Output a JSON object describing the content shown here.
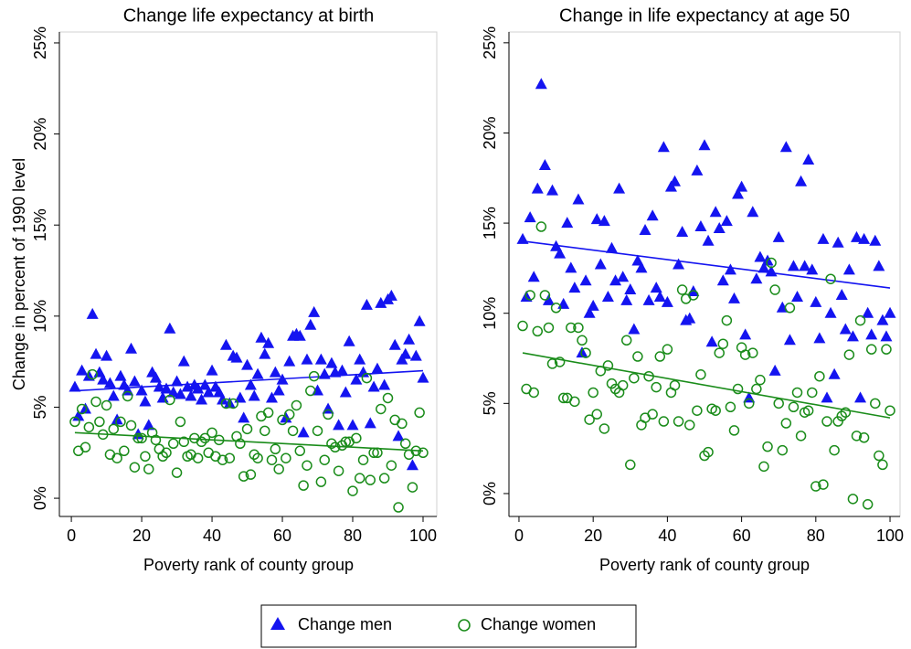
{
  "chart_data": [
    {
      "type": "scatter",
      "title": "Change life expectancy at birth",
      "x_label": "Poverty rank of county group",
      "y_label": "Change in percent of 1990 level",
      "xlim": [
        -3.4,
        103.9
      ],
      "xticks": [
        0,
        20,
        40,
        60,
        80,
        100
      ],
      "ylim": [
        -1,
        25.6
      ],
      "yticks": [
        {
          "value": 0,
          "label": "0%"
        },
        {
          "value": 5,
          "label": "5%"
        },
        {
          "value": 10,
          "label": "10%"
        },
        {
          "value": 15,
          "label": "15%"
        },
        {
          "value": 20,
          "label": "20%"
        },
        {
          "value": 25,
          "label": "25%"
        }
      ],
      "x": [
        1,
        2,
        3,
        4,
        5,
        6,
        7,
        8,
        9,
        10,
        11,
        12,
        13,
        14,
        15,
        16,
        17,
        18,
        19,
        20,
        21,
        22,
        23,
        24,
        25,
        26,
        27,
        28,
        29,
        30,
        31,
        32,
        33,
        34,
        35,
        36,
        37,
        38,
        39,
        40,
        41,
        42,
        43,
        44,
        45,
        46,
        47,
        48,
        49,
        50,
        51,
        52,
        53,
        54,
        55,
        56,
        57,
        58,
        59,
        60,
        61,
        62,
        63,
        64,
        65,
        66,
        67,
        68,
        69,
        70,
        71,
        72,
        73,
        74,
        75,
        76,
        77,
        78,
        79,
        80,
        81,
        82,
        83,
        84,
        85,
        86,
        87,
        88,
        89,
        90,
        91,
        92,
        93,
        94,
        95,
        96,
        97,
        98,
        99,
        100
      ],
      "series": [
        {
          "name": "Change men",
          "marker": "triangle",
          "color": "#1414f0",
          "values": [
            6.1,
            4.5,
            7.0,
            4.9,
            6.7,
            10.1,
            7.9,
            6.9,
            6.5,
            7.8,
            6.3,
            5.6,
            4.3,
            6.7,
            6.2,
            5.9,
            8.2,
            6.4,
            3.5,
            5.9,
            5.3,
            4.0,
            6.9,
            6.6,
            6.1,
            5.5,
            6.0,
            9.3,
            5.8,
            6.4,
            5.7,
            7.5,
            6.1,
            5.6,
            6.2,
            6.0,
            5.4,
            6.2,
            5.8,
            7.0,
            6.1,
            5.8,
            5.4,
            8.4,
            5.2,
            7.8,
            7.7,
            5.5,
            4.4,
            7.3,
            6.2,
            5.6,
            6.8,
            8.8,
            7.9,
            8.5,
            5.5,
            6.9,
            5.9,
            6.5,
            4.4,
            7.5,
            8.9,
            9.0,
            8.9,
            3.6,
            7.6,
            9.5,
            10.2,
            5.9,
            7.6,
            6.8,
            4.9,
            7.4,
            6.9,
            4.0,
            7.0,
            5.8,
            8.6,
            4.0,
            6.5,
            7.6,
            6.9,
            10.6,
            4.1,
            6.1,
            7.1,
            10.7,
            6.2,
            10.9,
            11.1,
            8.4,
            3.4,
            7.6,
            7.9,
            8.7,
            1.8,
            7.8,
            9.7,
            6.6
          ],
          "fit": {
            "x": [
              1,
              100
            ],
            "values": [
              5.9,
              7.0
            ]
          }
        },
        {
          "name": "Change women",
          "marker": "circle",
          "color": "#1a8c1a",
          "values": [
            4.2,
            2.6,
            4.9,
            2.8,
            3.9,
            6.8,
            5.3,
            4.2,
            3.5,
            5.1,
            2.4,
            3.8,
            2.2,
            4.2,
            2.6,
            5.6,
            4.0,
            1.7,
            3.3,
            3.3,
            2.3,
            1.6,
            3.6,
            3.2,
            2.7,
            2.3,
            2.5,
            5.4,
            3.0,
            1.4,
            4.2,
            3.1,
            2.3,
            2.4,
            3.3,
            2.2,
            3.1,
            3.3,
            2.5,
            3.6,
            2.3,
            3.2,
            2.1,
            5.2,
            2.2,
            5.2,
            3.4,
            3.0,
            1.2,
            3.8,
            1.3,
            2.4,
            2.2,
            4.5,
            3.7,
            4.7,
            2.1,
            2.7,
            1.6,
            4.3,
            2.2,
            4.6,
            3.7,
            5.1,
            2.6,
            0.7,
            1.8,
            5.9,
            6.7,
            3.7,
            0.9,
            2.1,
            4.6,
            3.0,
            2.8,
            1.5,
            2.9,
            3.1,
            3.1,
            0.4,
            3.3,
            1.1,
            2.1,
            6.6,
            1.0,
            2.5,
            2.5,
            4.9,
            1.1,
            5.5,
            1.8,
            4.3,
            -0.5,
            4.1,
            3.0,
            2.4,
            0.6,
            2.6,
            4.7,
            2.5
          ],
          "fit": {
            "x": [
              1,
              100
            ],
            "values": [
              3.6,
              2.6
            ]
          }
        }
      ]
    },
    {
      "type": "scatter",
      "title": "Change in life expectancy at age 50",
      "x_label": "Poverty rank of county group",
      "xlim": [
        -2.7,
        102.7
      ],
      "xticks": [
        0,
        20,
        40,
        60,
        80,
        100
      ],
      "ylim": [
        -1.27,
        25.6
      ],
      "yticks": [
        {
          "value": 0,
          "label": "0%"
        },
        {
          "value": 5,
          "label": "5%"
        },
        {
          "value": 10,
          "label": "10%"
        },
        {
          "value": 15,
          "label": "15%"
        },
        {
          "value": 20,
          "label": "20%"
        },
        {
          "value": 25,
          "label": "25%"
        }
      ],
      "x": [
        1,
        2,
        3,
        4,
        5,
        6,
        7,
        8,
        9,
        10,
        11,
        12,
        13,
        14,
        15,
        16,
        17,
        18,
        19,
        20,
        21,
        22,
        23,
        24,
        25,
        26,
        27,
        28,
        29,
        30,
        31,
        32,
        33,
        34,
        35,
        36,
        37,
        38,
        39,
        40,
        41,
        42,
        43,
        44,
        45,
        46,
        47,
        48,
        49,
        50,
        51,
        52,
        53,
        54,
        55,
        56,
        57,
        58,
        59,
        60,
        61,
        62,
        63,
        64,
        65,
        66,
        67,
        68,
        69,
        70,
        71,
        72,
        73,
        74,
        75,
        76,
        77,
        78,
        79,
        80,
        81,
        82,
        83,
        84,
        85,
        86,
        87,
        88,
        89,
        90,
        91,
        92,
        93,
        94,
        95,
        96,
        97,
        98,
        99,
        100
      ],
      "series": [
        {
          "marker": "triangle",
          "color": "#1414f0",
          "values": [
            14.1,
            10.9,
            15.3,
            12.0,
            16.9,
            22.7,
            18.2,
            10.7,
            16.8,
            13.7,
            13.3,
            10.5,
            15.0,
            12.5,
            11.4,
            16.3,
            7.8,
            11.8,
            10.0,
            10.4,
            15.2,
            12.7,
            15.1,
            10.9,
            13.6,
            11.8,
            16.9,
            12.0,
            10.7,
            11.3,
            9.1,
            12.9,
            12.5,
            14.6,
            10.7,
            15.4,
            11.4,
            10.9,
            19.2,
            10.6,
            17.0,
            17.3,
            12.7,
            14.5,
            9.6,
            9.7,
            11.2,
            17.9,
            14.8,
            19.3,
            14.0,
            8.4,
            15.6,
            14.7,
            11.8,
            15.1,
            12.4,
            10.8,
            16.6,
            17.0,
            8.8,
            5.3,
            15.6,
            11.9,
            13.1,
            12.5,
            12.9,
            12.3,
            6.8,
            14.2,
            10.3,
            19.2,
            8.5,
            12.6,
            10.9,
            17.3,
            12.6,
            18.5,
            12.4,
            10.6,
            8.6,
            14.1,
            5.3,
            10.0,
            6.6,
            13.9,
            11.0,
            9.1,
            12.4,
            8.7,
            14.2,
            5.3,
            14.1,
            10.0,
            8.8,
            14.0,
            12.6,
            9.6,
            8.7,
            10.0
          ],
          "fit": {
            "x": [
              1,
              100
            ],
            "values": [
              14.0,
              11.4
            ]
          }
        },
        {
          "marker": "circle",
          "color": "#1a8c1a",
          "values": [
            9.3,
            5.8,
            11.0,
            5.6,
            9.0,
            14.8,
            11.0,
            9.2,
            7.2,
            10.3,
            7.3,
            5.3,
            5.3,
            9.2,
            5.1,
            9.2,
            8.5,
            7.8,
            4.1,
            5.6,
            4.4,
            6.8,
            3.6,
            7.1,
            6.1,
            5.8,
            5.6,
            6.0,
            8.5,
            1.6,
            6.4,
            7.6,
            3.8,
            4.2,
            6.5,
            4.4,
            5.9,
            7.6,
            4.0,
            8.0,
            5.6,
            6.0,
            4.0,
            11.3,
            10.8,
            3.8,
            11.0,
            4.6,
            6.6,
            2.1,
            2.3,
            4.7,
            4.6,
            7.8,
            8.3,
            9.6,
            4.8,
            3.5,
            5.8,
            8.1,
            7.7,
            5.0,
            7.8,
            5.8,
            6.3,
            1.5,
            2.6,
            12.8,
            11.3,
            5.0,
            2.4,
            3.9,
            10.3,
            4.8,
            5.6,
            3.2,
            4.5,
            4.6,
            5.6,
            0.4,
            6.5,
            0.5,
            4.0,
            11.9,
            2.4,
            4.0,
            4.3,
            4.5,
            7.7,
            -0.3,
            3.2,
            9.6,
            3.1,
            -0.6,
            8.0,
            5.0,
            2.1,
            1.6,
            8.0,
            4.6
          ],
          "fit": {
            "x": [
              1,
              100
            ],
            "values": [
              7.8,
              4.2
            ]
          }
        }
      ]
    }
  ]
}
